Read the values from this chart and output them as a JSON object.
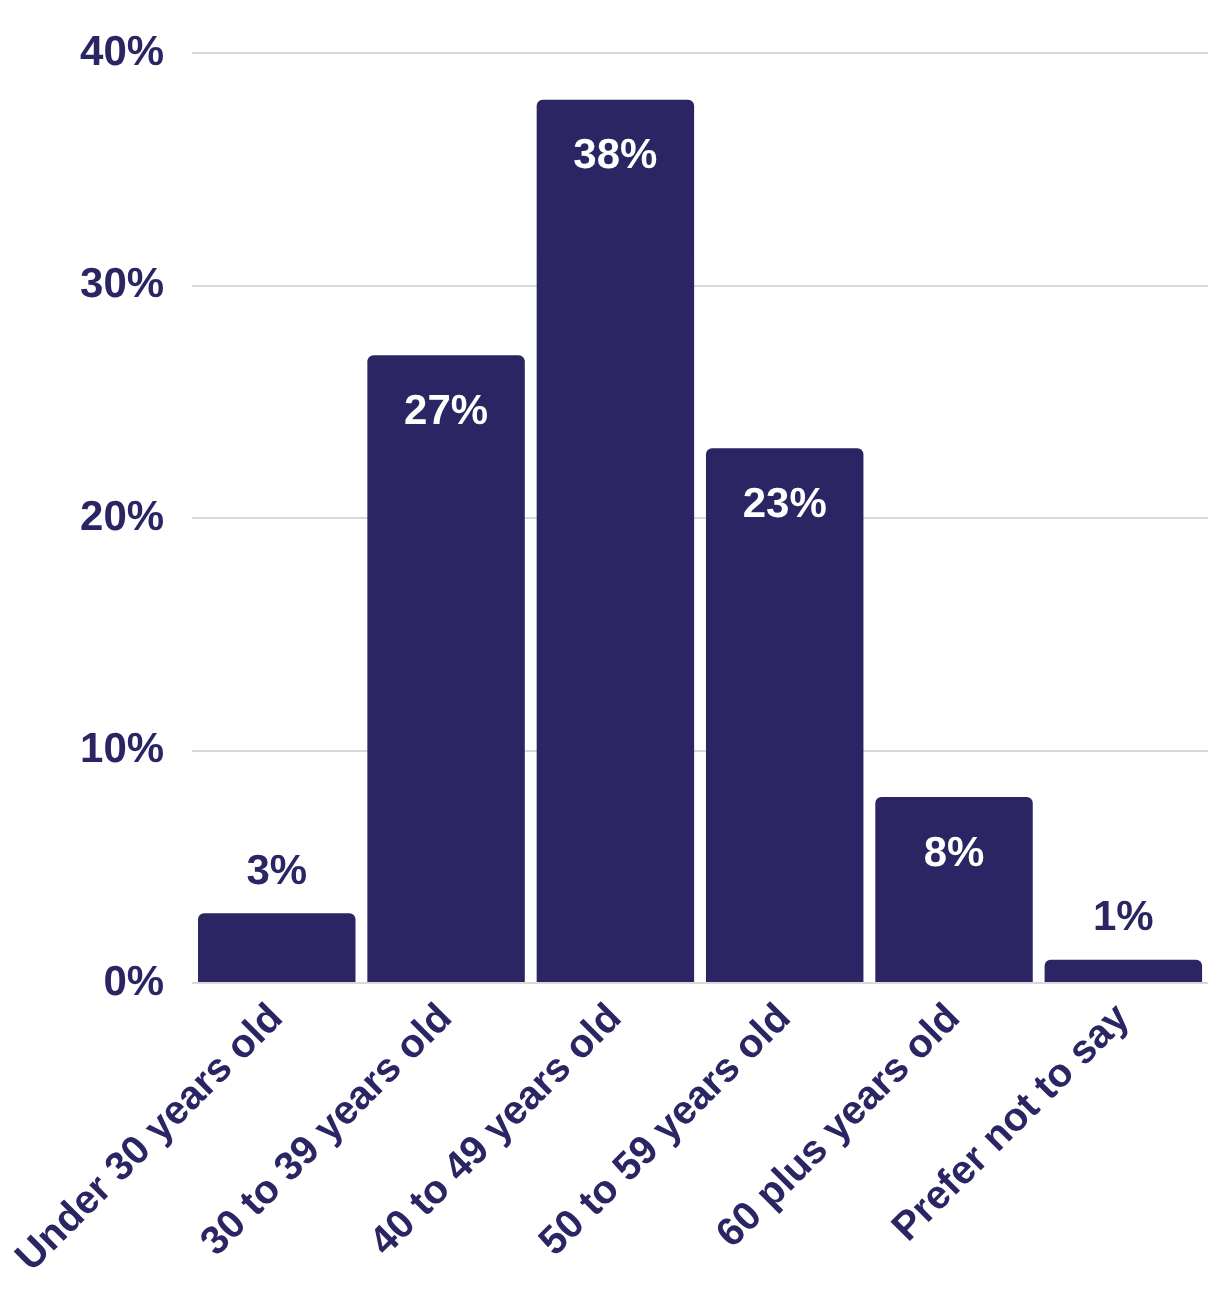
{
  "chart_data": {
    "type": "bar",
    "categories": [
      "Under 30 years old",
      "30 to 39 years old",
      "40 to 49 years old",
      "50 to 59 years old",
      "60 plus years old",
      "Prefer not to say"
    ],
    "values": [
      3,
      27,
      38,
      23,
      8,
      1
    ],
    "color": "#2b2663",
    "value_labels": [
      "3%",
      "27%",
      "38%",
      "23%",
      "8%",
      "1%"
    ],
    "ylim": [
      0,
      40
    ],
    "yticks": [
      {
        "value": 0,
        "label": "0%"
      },
      {
        "value": 10,
        "label": "10%"
      },
      {
        "value": 20,
        "label": "20%"
      },
      {
        "value": 30,
        "label": "30%"
      },
      {
        "value": 40,
        "label": "40%"
      }
    ],
    "grid": "y"
  }
}
